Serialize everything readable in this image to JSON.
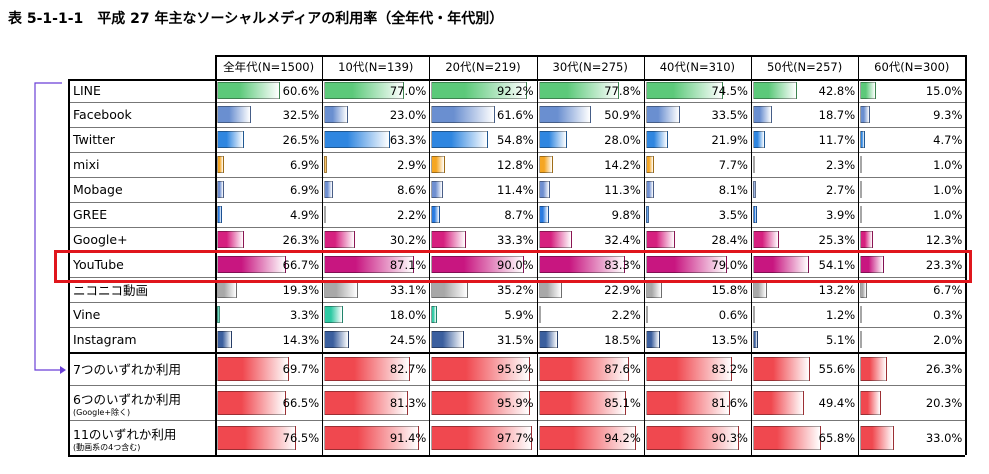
{
  "title": "表 5-1-1-1　平成 27 年主なソーシャルメディアの利用率（全年代・年代別）",
  "chart_data": {
    "type": "table",
    "columns": [
      "全年代(N=1500)",
      "10代(N=139)",
      "20代(N=219)",
      "30代(N=275)",
      "40代(N=310)",
      "50代(N=257)",
      "60代(N=300)"
    ],
    "rows": [
      {
        "label": "LINE",
        "values": [
          60.6,
          77.0,
          92.2,
          77.8,
          74.5,
          42.8,
          15.0
        ],
        "color": "#5cc97a"
      },
      {
        "label": "Facebook",
        "values": [
          32.5,
          23.0,
          61.6,
          50.9,
          33.5,
          18.7,
          9.3
        ],
        "color": "#6a8fd0"
      },
      {
        "label": "Twitter",
        "values": [
          26.5,
          63.3,
          54.8,
          28.0,
          21.9,
          11.7,
          4.7
        ],
        "color": "#2f86e0"
      },
      {
        "label": "mixi",
        "values": [
          6.9,
          2.9,
          12.8,
          14.2,
          7.7,
          2.3,
          1.0
        ],
        "color": "#f5a623"
      },
      {
        "label": "Mobage",
        "values": [
          6.9,
          8.6,
          11.4,
          11.3,
          8.1,
          2.7,
          1.0
        ],
        "color": "#6f8fd0"
      },
      {
        "label": "GREE",
        "values": [
          4.9,
          2.2,
          8.7,
          9.8,
          3.5,
          3.9,
          1.0
        ],
        "color": "#2a7be0"
      },
      {
        "label": "Google+",
        "values": [
          26.3,
          30.2,
          33.3,
          32.4,
          28.4,
          25.3,
          12.3
        ],
        "color": "#d6207f"
      },
      {
        "label": "YouTube",
        "values": [
          66.7,
          87.1,
          90.0,
          83.3,
          79.0,
          54.1,
          23.3
        ],
        "color": "#c81680"
      },
      {
        "label": "ニコニコ動画",
        "values": [
          19.3,
          33.1,
          35.2,
          22.9,
          15.8,
          13.2,
          6.7
        ],
        "color": "#a8a8a8"
      },
      {
        "label": "Vine",
        "values": [
          3.3,
          18.0,
          5.9,
          2.2,
          0.6,
          1.2,
          0.3
        ],
        "color": "#2ec9a3"
      },
      {
        "label": "Instagram",
        "values": [
          14.3,
          24.5,
          31.5,
          18.5,
          13.5,
          5.1,
          2.0
        ],
        "color": "#3b5f9e"
      },
      {
        "label": "7つのいずれか利用",
        "sublabel": "",
        "values": [
          69.7,
          82.7,
          95.9,
          87.6,
          83.2,
          55.6,
          26.3
        ],
        "color": "#f0484f"
      },
      {
        "label": "6つのいずれか利用",
        "sublabel": "(Google+除く)",
        "values": [
          66.5,
          81.3,
          95.9,
          85.1,
          81.6,
          49.4,
          20.3
        ],
        "color": "#f0484f"
      },
      {
        "label": "11のいずれか利用",
        "sublabel": "(動画系の4つ含む)",
        "values": [
          76.5,
          91.4,
          97.7,
          94.2,
          90.3,
          65.8,
          33.0
        ],
        "color": "#f0484f"
      }
    ],
    "value_unit": "%",
    "highlight_row": "YouTube"
  }
}
